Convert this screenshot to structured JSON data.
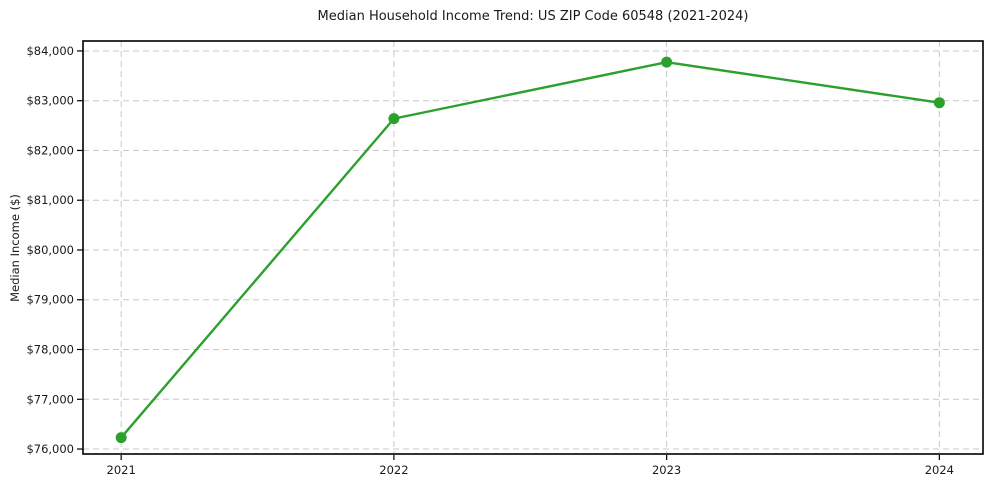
{
  "chart_data": {
    "type": "line",
    "title": "Median Household Income Trend: US ZIP Code 60548 (2021-2024)",
    "xlabel": "",
    "ylabel": "Median Income ($)",
    "categories": [
      "2021",
      "2022",
      "2023",
      "2024"
    ],
    "x": [
      2021,
      2022,
      2023,
      2024
    ],
    "series": [
      {
        "name": "Median household income",
        "values": [
          76230,
          82640,
          83775,
          82960
        ],
        "color": "#2ca02c",
        "marker": "circle",
        "line_style": "solid"
      }
    ],
    "x_ticks": {
      "values": [
        2021,
        2022,
        2023,
        2024
      ],
      "labels": [
        "2021",
        "2022",
        "2023",
        "2024"
      ]
    },
    "y_ticks": {
      "values": [
        76000,
        77000,
        78000,
        79000,
        80000,
        81000,
        82000,
        83000,
        84000
      ],
      "labels": [
        "$76,000",
        "$77,000",
        "$78,000",
        "$79,000",
        "$80,000",
        "$81,000",
        "$82,000",
        "$83,000",
        "$84,000"
      ]
    },
    "xlim": [
      2020.86,
      2024.16
    ],
    "ylim": [
      75900,
      84200
    ],
    "grid": true,
    "grid_style": "dashed",
    "legend": "none",
    "colors": {
      "line": "#2ca02c",
      "grid": "#c8c8c8",
      "axis": "#000000",
      "text": "#1a1a1a",
      "background": "#ffffff"
    }
  }
}
